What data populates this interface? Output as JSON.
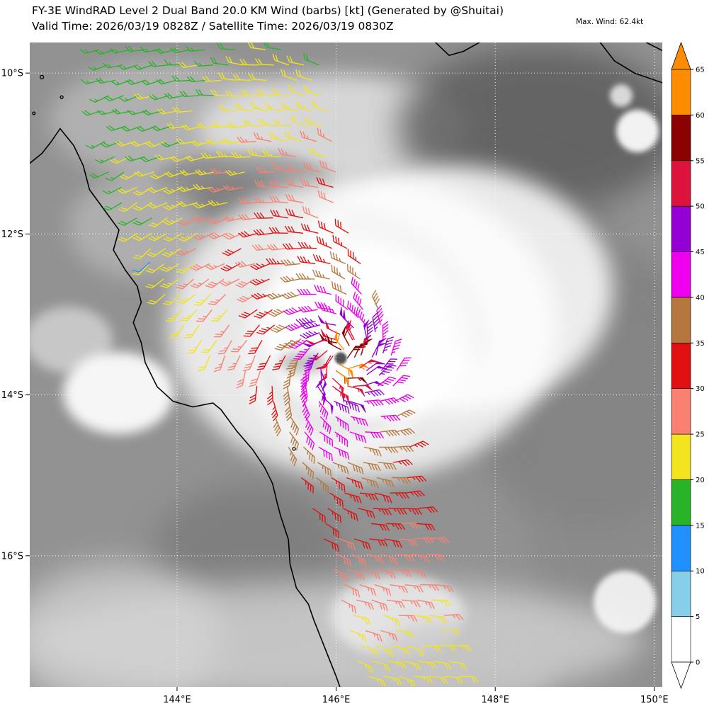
{
  "header": {
    "title_line1": "FY-3E WindRAD Level 2 Dual Band 20.0 KM Wind (barbs) [kt] (Generated by @Shuitai)",
    "title_line2": "Valid Time: 2026/03/19 0828Z / Satellite Time: 2026/03/19 0830Z",
    "max_wind_label": "Max. Wind: 62.4kt"
  },
  "axes": {
    "lon_min": 142.148,
    "lon_max": 150.1,
    "lat_min": 9.62,
    "lat_max": 17.63,
    "lon_ticks": [
      {
        "value": 144,
        "label": "144°E"
      },
      {
        "value": 146,
        "label": "146°E"
      },
      {
        "value": 148,
        "label": "148°E"
      },
      {
        "value": 150,
        "label": "150°E"
      }
    ],
    "lat_ticks": [
      {
        "value": 10,
        "label": "10°S"
      },
      {
        "value": 12,
        "label": "12°S"
      },
      {
        "value": 14,
        "label": "14°S"
      },
      {
        "value": 16,
        "label": "16°S"
      }
    ]
  },
  "colorbar": {
    "tick_values": [
      0,
      5,
      10,
      15,
      20,
      25,
      30,
      35,
      40,
      45,
      50,
      55,
      60,
      65
    ],
    "segment_colors": [
      "#ffffff",
      "#87ceeb",
      "#1e90ff",
      "#28b428",
      "#f2e41f",
      "#fa8072",
      "#e01010",
      "#b5773d",
      "#ee00ee",
      "#9400d3",
      "#dc143c",
      "#8b0000",
      "#ff8c00"
    ],
    "extend_upper_color": "#ff8c00",
    "extend_lower_color": "#ffffff"
  },
  "chart_data": {
    "type": "wind_barbs",
    "title": "FY-3E WindRAD Level 2 Dual Band 20.0 KM Wind (barbs) [kt]",
    "max_wind_kt": 62.4,
    "rotation": "clockwise_southern_hemisphere",
    "inflow_deg": 22,
    "grid_spacing_deg": 0.19,
    "center": {
      "lon": 146.05,
      "lat": 13.53
    },
    "speed_profile_r_deg_vs_kt": [
      [
        0,
        62
      ],
      [
        0.15,
        58
      ],
      [
        0.3,
        52
      ],
      [
        0.45,
        47
      ],
      [
        0.6,
        43
      ],
      [
        0.8,
        40
      ],
      [
        1.0,
        37
      ],
      [
        1.3,
        34
      ],
      [
        1.6,
        31
      ],
      [
        2.0,
        29
      ],
      [
        2.4,
        26.5
      ],
      [
        3.0,
        23
      ],
      [
        3.75,
        20
      ],
      [
        4.5,
        17
      ],
      [
        5.3,
        14.5
      ]
    ],
    "west_deficit": {
      "amount": -8,
      "bearing_deg": -90,
      "sigma_deg": 25
    },
    "south_boost": {
      "amount": 3.5,
      "bearing_deg": 180,
      "sigma_deg": 45
    },
    "swath_left_edge_lat_lon": [
      [
        9.6,
        143.02
      ],
      [
        10.5,
        143.05
      ],
      [
        11.3,
        143.15
      ],
      [
        12.0,
        143.5
      ],
      [
        12.5,
        143.7
      ],
      [
        13.0,
        144.0
      ],
      [
        13.45,
        144.3
      ],
      [
        13.8,
        144.95
      ],
      [
        14.3,
        145.25
      ],
      [
        15.0,
        145.55
      ],
      [
        15.8,
        145.85
      ],
      [
        16.5,
        146.05
      ],
      [
        17.0,
        146.2
      ],
      [
        17.65,
        146.35
      ]
    ],
    "swath_right_edge_lat_lon": [
      [
        9.6,
        145.82
      ],
      [
        10.6,
        145.95
      ],
      [
        11.6,
        146.08
      ],
      [
        12.4,
        146.35
      ],
      [
        13.0,
        146.6
      ],
      [
        13.4,
        146.82
      ],
      [
        14.2,
        146.9
      ],
      [
        15.0,
        147.0
      ],
      [
        16.0,
        147.25
      ],
      [
        17.0,
        147.45
      ],
      [
        17.65,
        147.6
      ]
    ],
    "inner_rings": [
      {
        "r": 0.09,
        "n": 4,
        "phase": 10
      },
      {
        "r": 0.18,
        "n": 7,
        "phase": 40
      },
      {
        "r": 0.28,
        "n": 9,
        "phase": 0
      },
      {
        "r": 0.4,
        "n": 11,
        "phase": 25
      },
      {
        "r": 0.54,
        "n": 12,
        "phase": 55
      }
    ],
    "outlier_barbs": [
      {
        "lon": 143.66,
        "lat": 12.35,
        "speed_kt": 12
      },
      {
        "lon": 146.1,
        "lat": 13.44,
        "speed_kt": 62
      }
    ],
    "barb_speed_bucket_kt": 5
  },
  "coastlines": {
    "queensland": [
      [
        142.15,
        11.12
      ],
      [
        142.3,
        11.0
      ],
      [
        142.42,
        10.85
      ],
      [
        142.53,
        10.69
      ],
      [
        142.7,
        10.9
      ],
      [
        142.82,
        11.15
      ],
      [
        142.9,
        11.45
      ],
      [
        143.1,
        11.72
      ],
      [
        143.27,
        11.95
      ],
      [
        143.2,
        12.2
      ],
      [
        143.35,
        12.45
      ],
      [
        143.5,
        12.65
      ],
      [
        143.55,
        12.85
      ],
      [
        143.45,
        13.1
      ],
      [
        143.55,
        13.35
      ],
      [
        143.6,
        13.6
      ],
      [
        143.75,
        13.9
      ],
      [
        143.95,
        14.08
      ],
      [
        144.2,
        14.15
      ],
      [
        144.45,
        14.1
      ],
      [
        144.55,
        14.18
      ],
      [
        144.75,
        14.45
      ],
      [
        144.95,
        14.68
      ],
      [
        145.1,
        14.9
      ],
      [
        145.2,
        15.1
      ],
      [
        145.26,
        15.35
      ],
      [
        145.3,
        15.5
      ],
      [
        145.4,
        15.8
      ],
      [
        145.42,
        16.1
      ],
      [
        145.5,
        16.4
      ],
      [
        145.65,
        16.6
      ],
      [
        145.72,
        16.8
      ],
      [
        145.8,
        17.0
      ],
      [
        145.9,
        17.25
      ],
      [
        146.0,
        17.5
      ],
      [
        146.05,
        17.64
      ]
    ],
    "png_coast_center": [
      [
        147.25,
        9.62
      ],
      [
        147.42,
        9.78
      ],
      [
        147.6,
        9.73
      ],
      [
        147.8,
        9.62
      ]
    ],
    "png_coast_east": [
      [
        149.32,
        9.62
      ],
      [
        149.5,
        9.85
      ],
      [
        149.75,
        10.0
      ],
      [
        150.1,
        10.12
      ]
    ],
    "png_coast_corner": [
      [
        149.9,
        9.62
      ],
      [
        150.1,
        9.72
      ]
    ],
    "islands": [
      {
        "lon": 142.3,
        "lat": 10.05,
        "r": 2.5
      },
      {
        "lon": 142.55,
        "lat": 10.3,
        "r": 2
      },
      {
        "lon": 142.2,
        "lat": 10.5,
        "r": 1.8
      },
      {
        "lon": 145.47,
        "lat": 14.67,
        "r": 2
      }
    ]
  }
}
